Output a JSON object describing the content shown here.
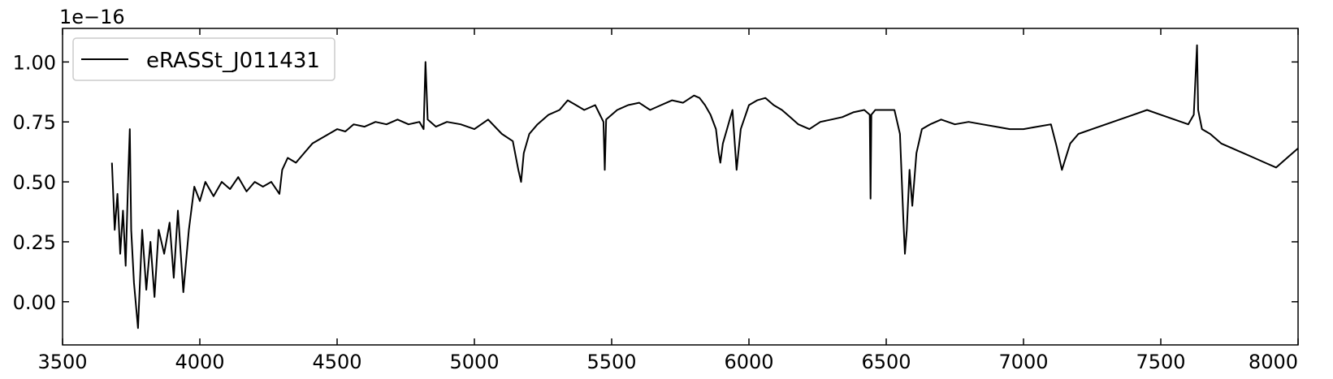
{
  "chart_data": {
    "type": "line",
    "title": "",
    "xlabel": "",
    "ylabel": "",
    "y_offset_label": "1e−16",
    "xlim": [
      3500,
      8000
    ],
    "ylim": [
      -0.18,
      1.14
    ],
    "xticks": [
      3500,
      4000,
      4500,
      5000,
      5500,
      6000,
      6500,
      7000,
      7500,
      8000
    ],
    "xtick_labels": [
      "3500",
      "4000",
      "4500",
      "5000",
      "5500",
      "6000",
      "6500",
      "7000",
      "7500",
      "8000"
    ],
    "yticks": [
      0.0,
      0.25,
      0.5,
      0.75,
      1.0
    ],
    "ytick_labels": [
      "0.00",
      "0.25",
      "0.50",
      "0.75",
      "1.00"
    ],
    "grid": false,
    "legend": {
      "position": "top-left",
      "entries": [
        "eRASSt_J011431"
      ]
    },
    "colors": {
      "series": "#000000",
      "axes": "#000000",
      "legend_border": "#cccccc",
      "background": "#ffffff"
    },
    "series": [
      {
        "name": "eRASSt_J011431",
        "x": [
          3680,
          3690,
          3700,
          3710,
          3720,
          3730,
          3740,
          3745,
          3750,
          3760,
          3775,
          3790,
          3805,
          3820,
          3835,
          3850,
          3870,
          3890,
          3905,
          3920,
          3940,
          3960,
          3980,
          4000,
          4020,
          4050,
          4080,
          4110,
          4140,
          4170,
          4200,
          4230,
          4260,
          4290,
          4300,
          4320,
          4350,
          4380,
          4410,
          4440,
          4470,
          4500,
          4530,
          4560,
          4600,
          4640,
          4680,
          4720,
          4760,
          4800,
          4815,
          4822,
          4830,
          4860,
          4900,
          4950,
          5000,
          5050,
          5100,
          5140,
          5160,
          5170,
          5180,
          5200,
          5230,
          5270,
          5310,
          5340,
          5370,
          5400,
          5440,
          5470,
          5475,
          5480,
          5520,
          5560,
          5600,
          5640,
          5680,
          5720,
          5760,
          5800,
          5820,
          5840,
          5860,
          5880,
          5890,
          5896,
          5905,
          5920,
          5940,
          5955,
          5970,
          6000,
          6030,
          6060,
          6090,
          6120,
          6150,
          6180,
          6220,
          6260,
          6300,
          6340,
          6380,
          6420,
          6440,
          6443,
          6446,
          6460,
          6500,
          6530,
          6550,
          6562,
          6568,
          6575,
          6585,
          6595,
          6610,
          6630,
          6660,
          6700,
          6750,
          6800,
          6850,
          6900,
          6950,
          7000,
          7050,
          7100,
          7120,
          7140,
          7170,
          7200,
          7250,
          7300,
          7350,
          7400,
          7450,
          7500,
          7550,
          7600,
          7620,
          7632,
          7636,
          7650,
          7680,
          7720,
          7760,
          7800,
          7840,
          7880,
          7920,
          7960,
          8000
        ],
        "y": [
          0.58,
          0.3,
          0.45,
          0.2,
          0.38,
          0.15,
          0.55,
          0.72,
          0.3,
          0.08,
          -0.11,
          0.3,
          0.05,
          0.25,
          0.02,
          0.3,
          0.2,
          0.33,
          0.1,
          0.38,
          0.04,
          0.3,
          0.48,
          0.42,
          0.5,
          0.44,
          0.5,
          0.47,
          0.52,
          0.46,
          0.5,
          0.48,
          0.5,
          0.45,
          0.55,
          0.6,
          0.58,
          0.62,
          0.66,
          0.68,
          0.7,
          0.72,
          0.71,
          0.74,
          0.73,
          0.75,
          0.74,
          0.76,
          0.74,
          0.75,
          0.72,
          1.0,
          0.76,
          0.73,
          0.75,
          0.74,
          0.72,
          0.76,
          0.7,
          0.67,
          0.55,
          0.5,
          0.62,
          0.7,
          0.74,
          0.78,
          0.8,
          0.84,
          0.82,
          0.8,
          0.82,
          0.75,
          0.55,
          0.76,
          0.8,
          0.82,
          0.83,
          0.8,
          0.82,
          0.84,
          0.83,
          0.86,
          0.85,
          0.82,
          0.78,
          0.72,
          0.62,
          0.58,
          0.66,
          0.72,
          0.8,
          0.55,
          0.72,
          0.82,
          0.84,
          0.85,
          0.82,
          0.8,
          0.77,
          0.74,
          0.72,
          0.75,
          0.76,
          0.77,
          0.79,
          0.8,
          0.78,
          0.43,
          0.78,
          0.8,
          0.8,
          0.8,
          0.7,
          0.35,
          0.2,
          0.3,
          0.55,
          0.4,
          0.62,
          0.72,
          0.74,
          0.76,
          0.74,
          0.75,
          0.74,
          0.73,
          0.72,
          0.72,
          0.73,
          0.74,
          0.65,
          0.55,
          0.66,
          0.7,
          0.72,
          0.74,
          0.76,
          0.78,
          0.8,
          0.78,
          0.76,
          0.74,
          0.78,
          1.07,
          0.8,
          0.72,
          0.7,
          0.66,
          0.64,
          0.62,
          0.6,
          0.58,
          0.56,
          0.6,
          0.64
        ]
      }
    ]
  }
}
